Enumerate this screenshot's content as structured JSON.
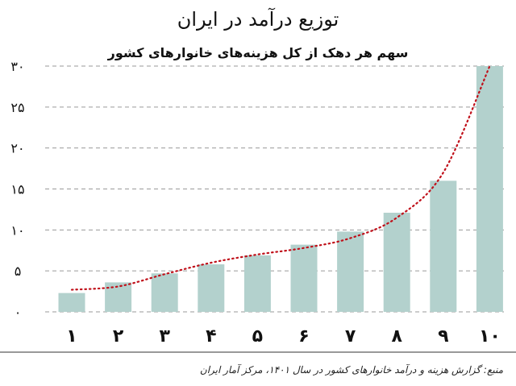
{
  "chart_data": {
    "type": "bar",
    "title": "توزیع درآمد در ایران",
    "subtitle": "سهم هر دهک از کل هزینه‌های خانوارهای کشور",
    "categories": [
      "۱",
      "۲",
      "۳",
      "۴",
      "۵",
      "۶",
      "۷",
      "۸",
      "۹",
      "۱۰"
    ],
    "values": [
      2.3,
      3.6,
      4.7,
      5.8,
      6.9,
      8.2,
      9.8,
      12.1,
      16.0,
      30.0
    ],
    "trend": [
      2.7,
      3.1,
      4.6,
      6.0,
      7.0,
      7.8,
      9.0,
      11.5,
      17.0,
      30.0
    ],
    "ylim": [
      0,
      30
    ],
    "yticks": [
      0,
      5,
      10,
      15,
      20,
      25,
      30
    ],
    "ytick_labels": [
      "۰",
      "۵",
      "۱۰",
      "۱۵",
      "۲۰",
      "۲۵",
      "۳۰"
    ],
    "grid": true,
    "colors": {
      "bar": "#b3d1cd",
      "trend": "#c0101a",
      "grid": "#9a9a9a",
      "axis": "#333333"
    }
  },
  "source_note": "منبع: گزارش هزینه و درآمد خانوارهای کشور در سال ۱۴۰۱، مرکز آمار ایران"
}
